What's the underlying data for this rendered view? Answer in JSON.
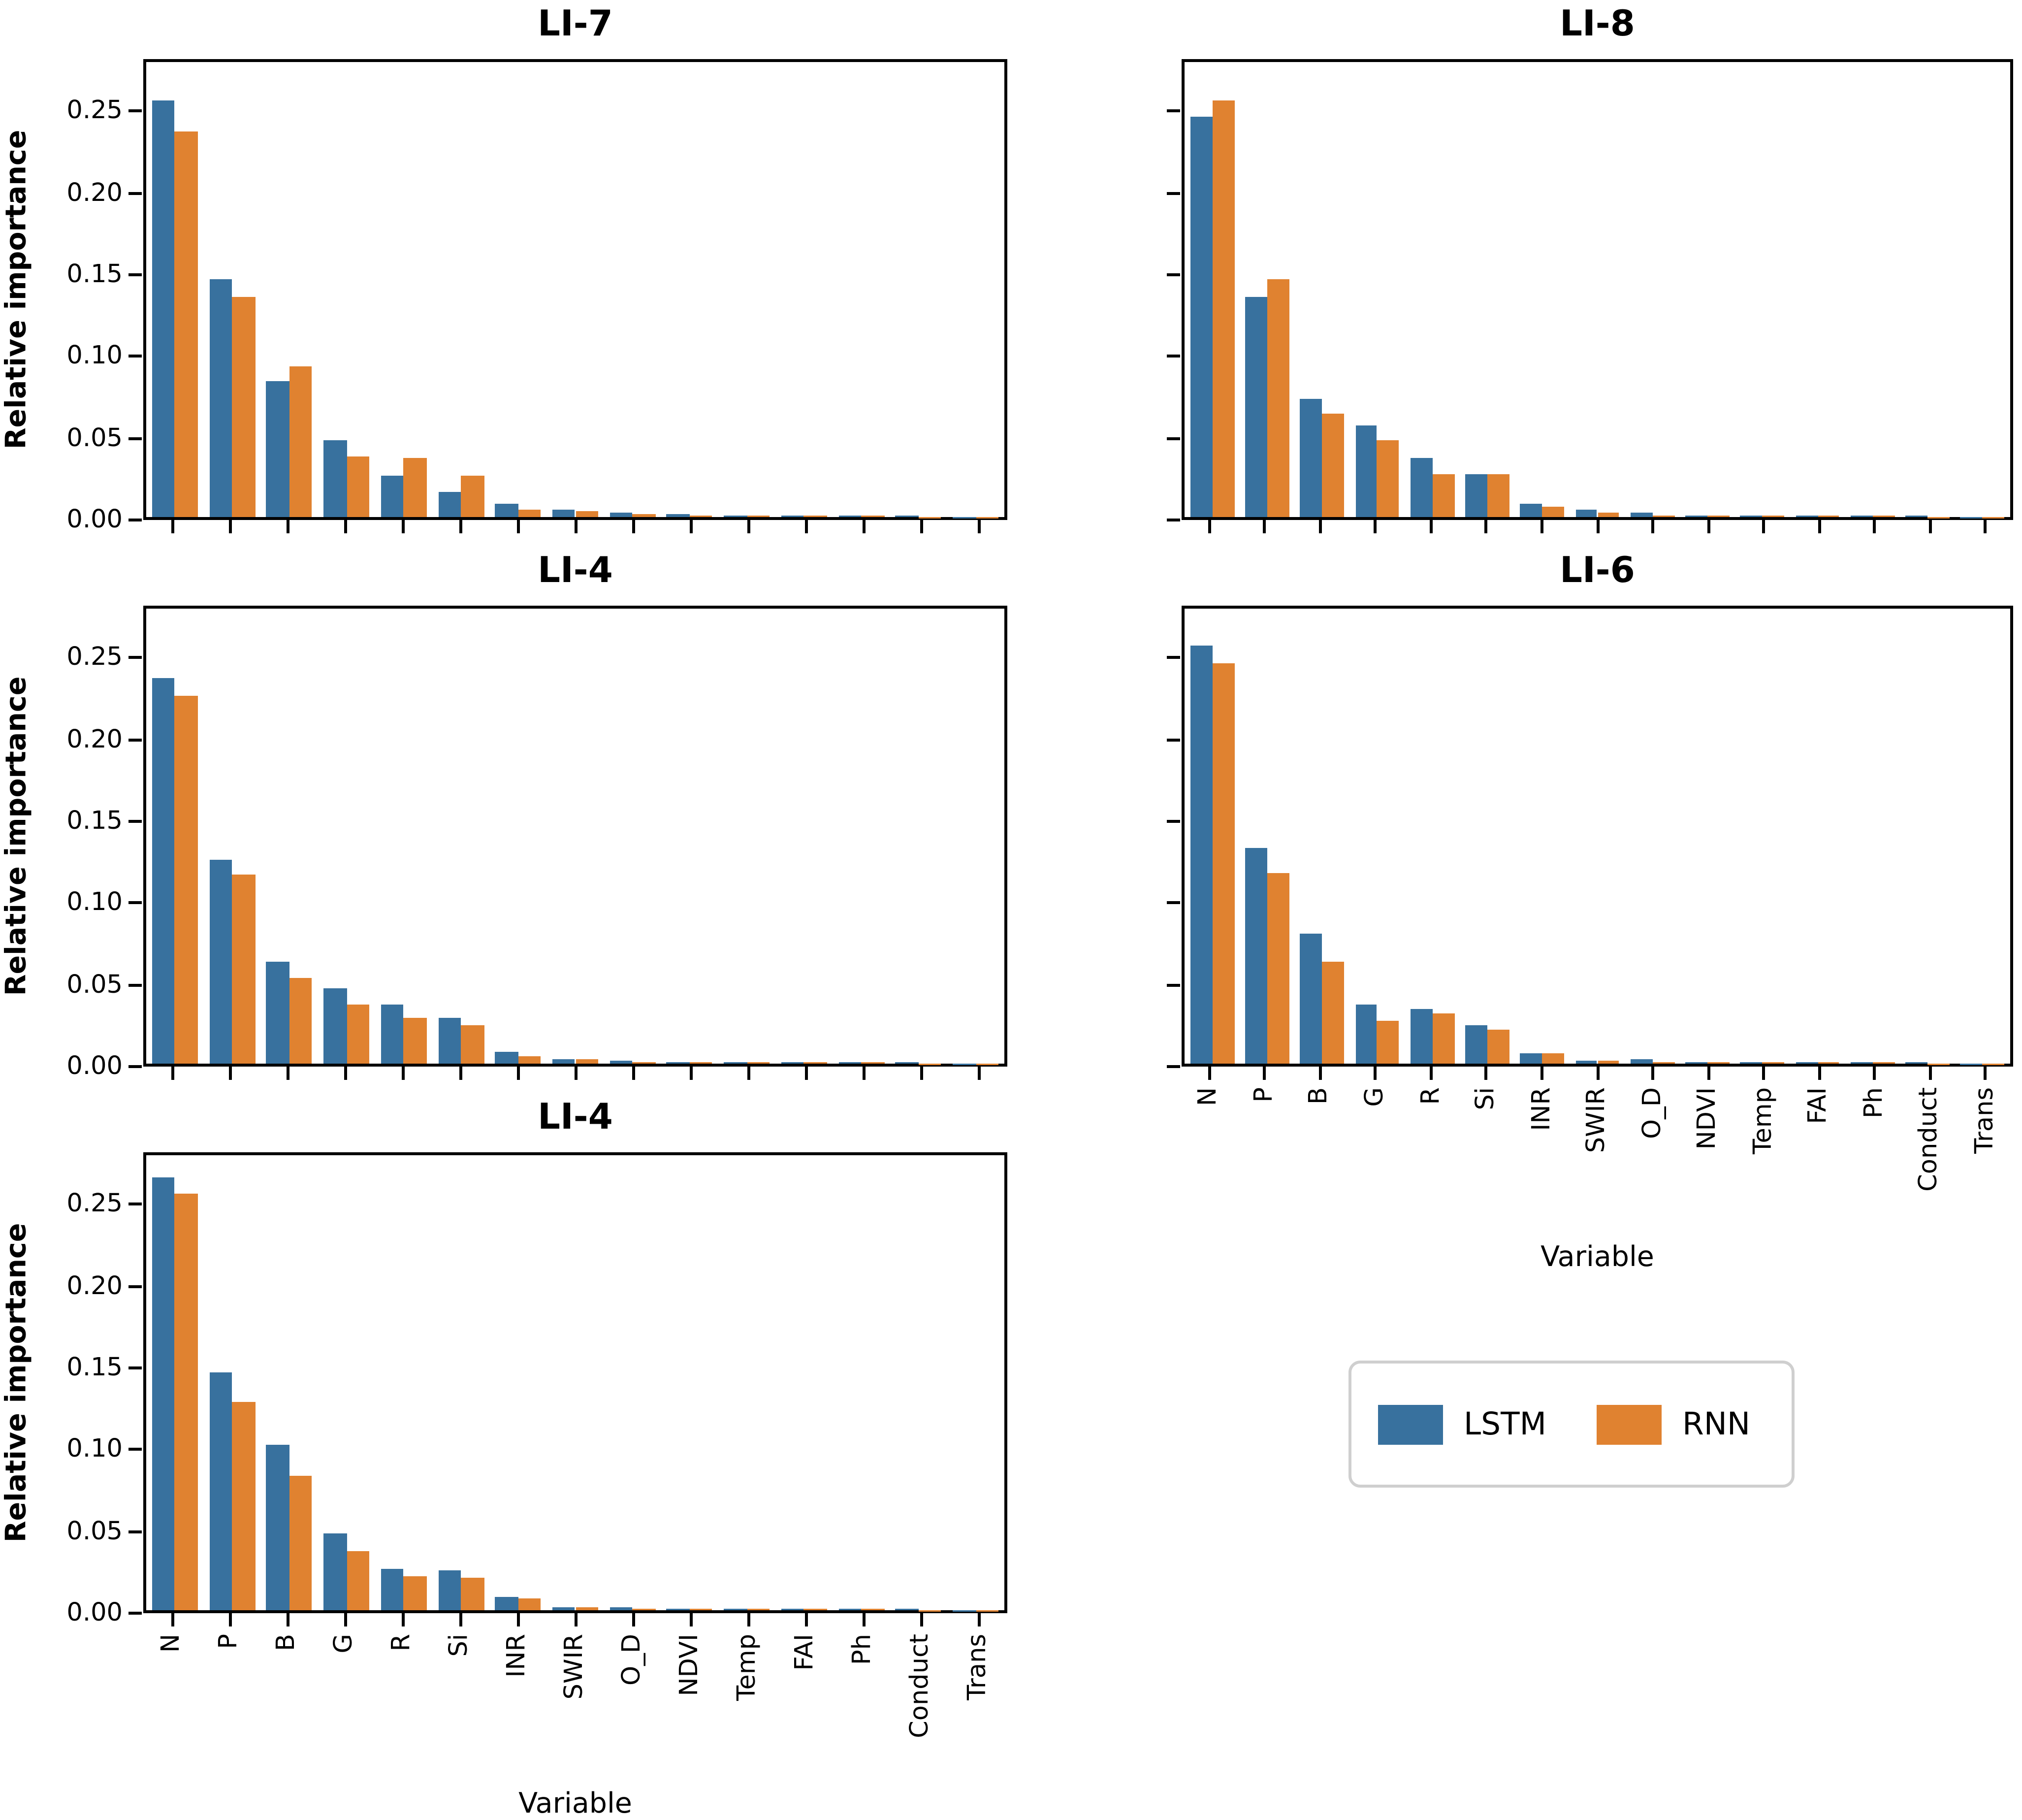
{
  "figure": {
    "background": "#ffffff",
    "ylabel": "Relative importance",
    "xlabel": "Variable",
    "colors": {
      "lstm": "#38719E",
      "rnn": "#E08230",
      "spine": "#000000"
    },
    "legend": {
      "position": "lower-right-cell",
      "items": [
        {
          "label": "LSTM",
          "color": "#38719E"
        },
        {
          "label": "RNN",
          "color": "#E08230"
        }
      ]
    }
  },
  "chart_data": [
    {
      "type": "bar",
      "title": "LI-7",
      "xlabel": "",
      "ylabel": "Relative importance",
      "ylim": [
        0,
        0.282
      ],
      "ytick_values": [
        0.0,
        0.05,
        0.1,
        0.15,
        0.2,
        0.25
      ],
      "ytick_labels": [
        "0.00",
        "0.05",
        "0.10",
        "0.15",
        "0.20",
        "0.25"
      ],
      "show_ytick_labels": true,
      "show_xtick_labels": false,
      "show_xlabel": false,
      "grid": false,
      "categories": [
        "N",
        "P",
        "B",
        "G",
        "R",
        "Si",
        "INR",
        "SWIR",
        "O_D",
        "NDVI",
        "Temp",
        "FAI",
        "Ph",
        "Conduct",
        "Trans"
      ],
      "series": [
        {
          "name": "LSTM",
          "color": "#38719E",
          "values": [
            0.258,
            0.147,
            0.084,
            0.048,
            0.026,
            0.016,
            0.008,
            0.005,
            0.003,
            0.002,
            0.001,
            0.001,
            0.001,
            0.0005,
            0.0003
          ]
        },
        {
          "name": "RNN",
          "color": "#E08230",
          "values": [
            0.239,
            0.136,
            0.093,
            0.038,
            0.037,
            0.026,
            0.005,
            0.004,
            0.002,
            0.001,
            0.001,
            0.001,
            0.001,
            0.0004,
            0.0002
          ]
        }
      ]
    },
    {
      "type": "bar",
      "title": "LI-8",
      "xlabel": "",
      "ylabel": "",
      "ylim": [
        0,
        0.282
      ],
      "ytick_values": [
        0.0,
        0.05,
        0.1,
        0.15,
        0.2,
        0.25
      ],
      "ytick_labels": [
        "0.00",
        "0.05",
        "0.10",
        "0.15",
        "0.20",
        "0.25"
      ],
      "show_ytick_labels": false,
      "show_xtick_labels": false,
      "show_xlabel": false,
      "grid": false,
      "categories": [
        "N",
        "P",
        "B",
        "G",
        "R",
        "Si",
        "INR",
        "SWIR",
        "O_D",
        "NDVI",
        "Temp",
        "FAI",
        "Ph",
        "Conduct",
        "Trans"
      ],
      "series": [
        {
          "name": "LSTM",
          "color": "#38719E",
          "values": [
            0.248,
            0.136,
            0.073,
            0.057,
            0.037,
            0.027,
            0.008,
            0.005,
            0.003,
            0.001,
            0.001,
            0.001,
            0.001,
            0.0005,
            0.0003
          ]
        },
        {
          "name": "RNN",
          "color": "#E08230",
          "values": [
            0.258,
            0.147,
            0.064,
            0.048,
            0.027,
            0.027,
            0.006,
            0.003,
            0.001,
            0.001,
            0.001,
            0.001,
            0.001,
            0.0004,
            0.0002
          ]
        }
      ]
    },
    {
      "type": "bar",
      "title": "LI-4",
      "xlabel": "",
      "ylabel": "Relative importance",
      "ylim": [
        0,
        0.282
      ],
      "ytick_values": [
        0.0,
        0.05,
        0.1,
        0.15,
        0.2,
        0.25
      ],
      "ytick_labels": [
        "0.00",
        "0.05",
        "0.10",
        "0.15",
        "0.20",
        "0.25"
      ],
      "show_ytick_labels": true,
      "show_xtick_labels": false,
      "show_xlabel": false,
      "grid": false,
      "categories": [
        "N",
        "P",
        "B",
        "G",
        "R",
        "Si",
        "INR",
        "SWIR",
        "O_D",
        "NDVI",
        "Temp",
        "FAI",
        "Ph",
        "Conduct",
        "Trans"
      ],
      "series": [
        {
          "name": "LSTM",
          "color": "#38719E",
          "values": [
            0.239,
            0.126,
            0.063,
            0.047,
            0.037,
            0.028,
            0.007,
            0.003,
            0.002,
            0.001,
            0.001,
            0.001,
            0.001,
            0.0005,
            0.0003
          ]
        },
        {
          "name": "RNN",
          "color": "#E08230",
          "values": [
            0.228,
            0.117,
            0.053,
            0.037,
            0.028,
            0.024,
            0.005,
            0.003,
            0.001,
            0.001,
            0.001,
            0.001,
            0.001,
            0.0004,
            0.0002
          ]
        }
      ]
    },
    {
      "type": "bar",
      "title": "LI-6",
      "xlabel": "Variable",
      "ylabel": "",
      "ylim": [
        0,
        0.282
      ],
      "ytick_values": [
        0.0,
        0.05,
        0.1,
        0.15,
        0.2,
        0.25
      ],
      "ytick_labels": [
        "0.00",
        "0.05",
        "0.10",
        "0.15",
        "0.20",
        "0.25"
      ],
      "show_ytick_labels": false,
      "show_xtick_labels": true,
      "show_xlabel": true,
      "grid": false,
      "categories": [
        "N",
        "P",
        "B",
        "G",
        "R",
        "Si",
        "INR",
        "SWIR",
        "O_D",
        "NDVI",
        "Temp",
        "FAI",
        "Ph",
        "Conduct",
        "Trans"
      ],
      "series": [
        {
          "name": "LSTM",
          "color": "#38719E",
          "values": [
            0.259,
            0.134,
            0.081,
            0.037,
            0.034,
            0.024,
            0.006,
            0.002,
            0.003,
            0.001,
            0.001,
            0.001,
            0.001,
            0.0005,
            0.0003
          ]
        },
        {
          "name": "RNN",
          "color": "#E08230",
          "values": [
            0.248,
            0.118,
            0.063,
            0.027,
            0.031,
            0.021,
            0.006,
            0.002,
            0.001,
            0.001,
            0.001,
            0.001,
            0.001,
            0.0004,
            0.0002
          ]
        }
      ]
    },
    {
      "type": "bar",
      "title": "LI-4",
      "xlabel": "Variable",
      "ylabel": "Relative importance",
      "ylim": [
        0,
        0.282
      ],
      "ytick_values": [
        0.0,
        0.05,
        0.1,
        0.15,
        0.2,
        0.25
      ],
      "ytick_labels": [
        "0.00",
        "0.05",
        "0.10",
        "0.15",
        "0.20",
        "0.25"
      ],
      "show_ytick_labels": true,
      "show_xtick_labels": true,
      "show_xlabel": true,
      "grid": false,
      "categories": [
        "N",
        "P",
        "B",
        "G",
        "R",
        "Si",
        "INR",
        "SWIR",
        "O_D",
        "NDVI",
        "Temp",
        "FAI",
        "Ph",
        "Conduct",
        "Trans"
      ],
      "series": [
        {
          "name": "LSTM",
          "color": "#38719E",
          "values": [
            0.268,
            0.147,
            0.103,
            0.048,
            0.026,
            0.025,
            0.008,
            0.002,
            0.002,
            0.001,
            0.001,
            0.001,
            0.001,
            0.0005,
            0.0003
          ]
        },
        {
          "name": "RNN",
          "color": "#E08230",
          "values": [
            0.258,
            0.129,
            0.083,
            0.037,
            0.021,
            0.02,
            0.007,
            0.002,
            0.001,
            0.001,
            0.001,
            0.001,
            0.001,
            0.0004,
            0.0002
          ]
        }
      ]
    }
  ]
}
